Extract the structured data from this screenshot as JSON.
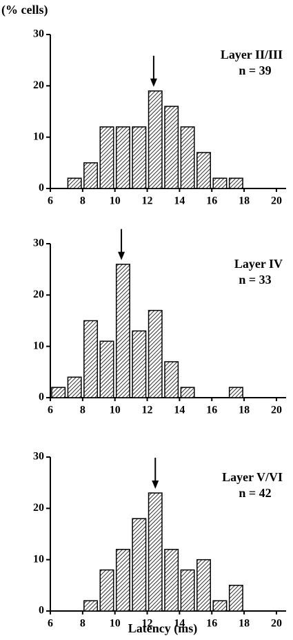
{
  "chart_data": [
    {
      "type": "histogram",
      "y_label": "(% cells)",
      "title": "Layer II/III",
      "subtitle": "n = 39",
      "bins": [
        7,
        8,
        9,
        10,
        11,
        12,
        13,
        14,
        15,
        16,
        17,
        18
      ],
      "values": [
        2,
        5,
        12,
        12,
        12,
        19,
        16,
        12,
        7,
        2,
        2
      ],
      "arrow_x": 12.4,
      "xlim": [
        6,
        20.6
      ],
      "ylim": [
        0,
        30
      ],
      "xticks": [
        6,
        8,
        10,
        12,
        14,
        16,
        18,
        20
      ],
      "yticks": [
        0,
        10,
        20,
        30
      ]
    },
    {
      "type": "histogram",
      "title": "Layer IV",
      "subtitle": "n = 33",
      "bins": [
        6,
        7,
        8,
        9,
        10,
        11,
        12,
        13,
        14,
        15,
        16,
        17,
        18
      ],
      "values": [
        2,
        4,
        15,
        11,
        26,
        13,
        17,
        7,
        2,
        0,
        0,
        2
      ],
      "arrow_x": 10.4,
      "xlim": [
        6,
        20.6
      ],
      "ylim": [
        0,
        30
      ],
      "xticks": [
        6,
        8,
        10,
        12,
        14,
        16,
        18,
        20
      ],
      "yticks": [
        0,
        10,
        20,
        30
      ]
    },
    {
      "type": "histogram",
      "title": "Layer V/VI",
      "subtitle": "n = 42",
      "x_label": "Latency (ms)",
      "bins": [
        8,
        9,
        10,
        11,
        12,
        13,
        14,
        15,
        16,
        17,
        18
      ],
      "values": [
        2,
        8,
        12,
        18,
        23,
        12,
        8,
        10,
        2,
        5
      ],
      "arrow_x": 12.5,
      "xlim": [
        6,
        20.6
      ],
      "ylim": [
        0,
        30
      ],
      "xticks": [
        6,
        8,
        10,
        12,
        14,
        16,
        18,
        20
      ],
      "yticks": [
        0,
        10,
        20,
        30
      ]
    }
  ]
}
